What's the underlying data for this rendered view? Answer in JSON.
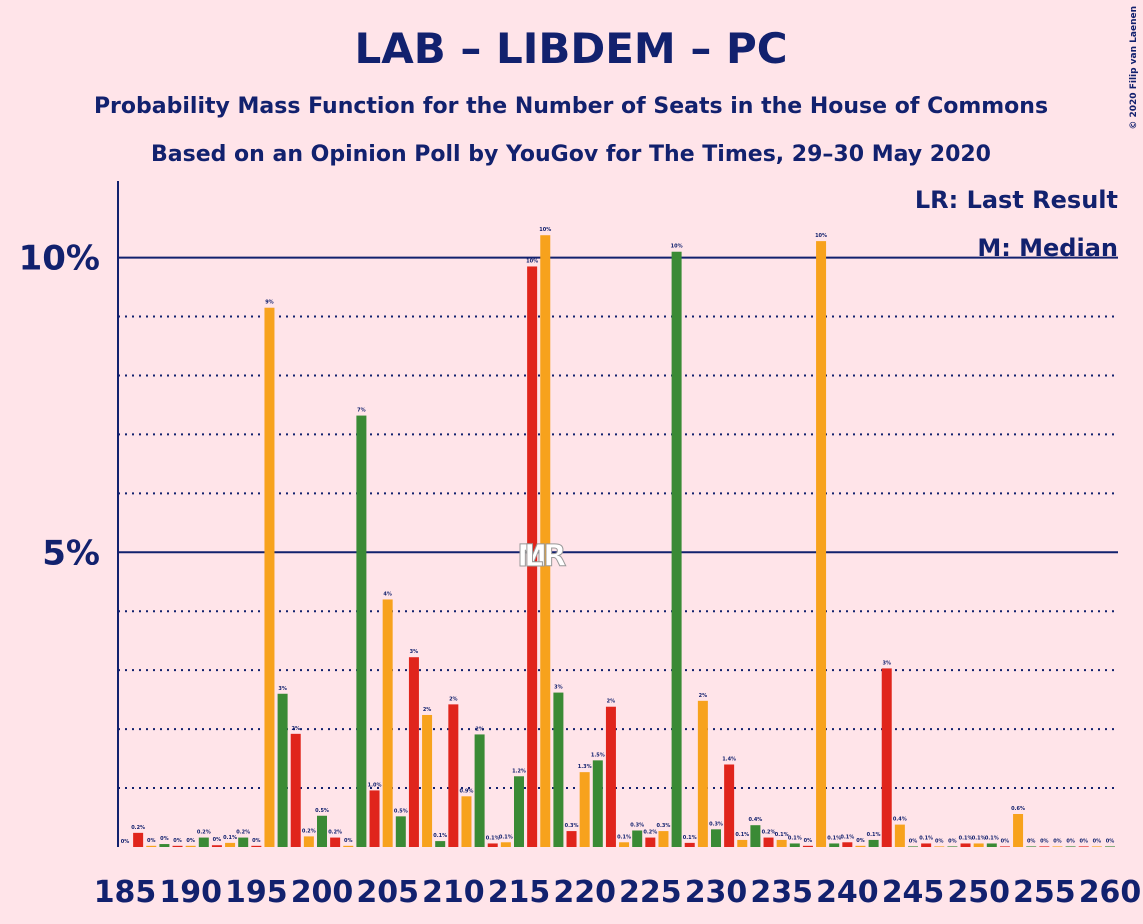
{
  "chart_data": {
    "type": "bar",
    "title": "LAB – LIBDEM – PC",
    "subtitle": "Probability Mass Function for the Number of Seats in the House of Commons",
    "subtitle2": "Based on an Opinion Poll by YouGov for The Times, 29–30 May 2020",
    "legend_notes": [
      "LR: Last Result",
      "M: Median"
    ],
    "copyright": "© 2020 Filip van Laenen",
    "markers": [
      {
        "text": "M",
        "x": 216
      },
      {
        "text": "LR",
        "x": 217
      }
    ],
    "x": [
      185,
      186,
      187,
      188,
      189,
      190,
      191,
      192,
      193,
      194,
      195,
      196,
      197,
      198,
      199,
      200,
      201,
      202,
      203,
      204,
      205,
      206,
      207,
      208,
      209,
      210,
      211,
      212,
      213,
      214,
      215,
      216,
      217,
      218,
      219,
      220,
      221,
      222,
      223,
      224,
      225,
      226,
      227,
      228,
      229,
      230,
      231,
      232,
      233,
      234,
      235,
      236,
      237,
      238,
      239,
      240,
      241,
      242,
      243,
      244,
      245,
      246,
      247,
      248,
      249,
      250,
      251,
      252,
      253,
      254,
      255,
      256,
      257,
      258,
      259,
      260
    ],
    "values": [
      0,
      0.24,
      0.02,
      0.05,
      0.02,
      0.02,
      0.16,
      0.03,
      0.07,
      0.16,
      0.02,
      9.15,
      2.6,
      1.92,
      0.18,
      0.53,
      0.16,
      0.02,
      7.32,
      0.96,
      4.2,
      0.52,
      3.22,
      2.24,
      0.1,
      2.42,
      0.86,
      1.91,
      0.06,
      0.08,
      1.2,
      9.85,
      10.38,
      2.62,
      0.27,
      1.27,
      1.47,
      2.38,
      0.08,
      0.28,
      0.16,
      0.27,
      10.1,
      0.07,
      2.48,
      0.3,
      1.4,
      0.12,
      0.37,
      0.16,
      0.12,
      0.06,
      0.02,
      10.28,
      0.06,
      0.08,
      0.02,
      0.12,
      3.03,
      0.38,
      0.01,
      0.06,
      0.01,
      0.01,
      0.06,
      0.06,
      0.06,
      0.01,
      0.56,
      0.01,
      0.01,
      0.01,
      0.01,
      0.01,
      0.01,
      0.01
    ],
    "value_labels": [
      "0%",
      "0.2%",
      "0%",
      "0%",
      "0%",
      "0%",
      "0.2%",
      "0%",
      "0.1%",
      "0.2%",
      "0%",
      "9%",
      "3%",
      "2%",
      "0.2%",
      "0.5%",
      "0.2%",
      "0%",
      "7%",
      "1.0%",
      "4%",
      "0.5%",
      "3%",
      "2%",
      "0.1%",
      "2%",
      "0.9%",
      "2%",
      "0.1%",
      "0.1%",
      "1.2%",
      "10%",
      "10%",
      "3%",
      "0.3%",
      "1.3%",
      "1.5%",
      "2%",
      "0.1%",
      "0.3%",
      "0.2%",
      "0.3%",
      "10%",
      "0.1%",
      "2%",
      "0.3%",
      "1.4%",
      "0.1%",
      "0.4%",
      "0.2%",
      "0.1%",
      "0.1%",
      "0%",
      "10%",
      "0.1%",
      "0.1%",
      "0%",
      "0.1%",
      "3%",
      "0.4%",
      "0%",
      "0.1%",
      "0%",
      "0%",
      "0.1%",
      "0.1%",
      "0.1%",
      "0%",
      "0.6%",
      "0%",
      "0%",
      "0%",
      "0%",
      "0%",
      "0%",
      "0%"
    ],
    "colors": [
      "#3a8a35",
      "#e0251c",
      "#f7a21d",
      "#3a8a35",
      "#e0251c",
      "#f7a21d",
      "#3a8a35",
      "#e0251c",
      "#f7a21d",
      "#3a8a35",
      "#e0251c",
      "#f7a21d",
      "#3a8a35",
      "#e0251c",
      "#f7a21d",
      "#3a8a35",
      "#e0251c",
      "#f7a21d",
      "#3a8a35",
      "#e0251c",
      "#f7a21d",
      "#3a8a35",
      "#e0251c",
      "#f7a21d",
      "#3a8a35",
      "#e0251c",
      "#f7a21d",
      "#3a8a35",
      "#e0251c",
      "#f7a21d",
      "#3a8a35",
      "#e0251c",
      "#f7a21d",
      "#3a8a35",
      "#e0251c",
      "#f7a21d",
      "#3a8a35",
      "#e0251c",
      "#f7a21d",
      "#3a8a35",
      "#e0251c",
      "#f7a21d",
      "#3a8a35",
      "#e0251c",
      "#f7a21d",
      "#3a8a35",
      "#e0251c",
      "#f7a21d",
      "#3a8a35",
      "#e0251c",
      "#f7a21d",
      "#3a8a35",
      "#e0251c",
      "#f7a21d",
      "#3a8a35",
      "#e0251c",
      "#f7a21d",
      "#3a8a35",
      "#e0251c",
      "#f7a21d",
      "#3a8a35",
      "#e0251c",
      "#f7a21d",
      "#3a8a35",
      "#e0251c",
      "#f7a21d",
      "#3a8a35",
      "#e0251c",
      "#f7a21d",
      "#3a8a35",
      "#e0251c",
      "#f7a21d",
      "#3a8a35",
      "#e0251c",
      "#f7a21d",
      "#3a8a35"
    ],
    "ylim": [
      0,
      11.3
    ],
    "yticks": [
      {
        "value": 5,
        "label": "5%"
      },
      {
        "value": 10,
        "label": "10%"
      }
    ],
    "minor_yticks": [
      1,
      2,
      3,
      4,
      6,
      7,
      8,
      9
    ],
    "xticks": [
      185,
      190,
      195,
      200,
      205,
      210,
      215,
      220,
      225,
      230,
      235,
      240,
      245,
      250,
      255,
      260
    ]
  }
}
